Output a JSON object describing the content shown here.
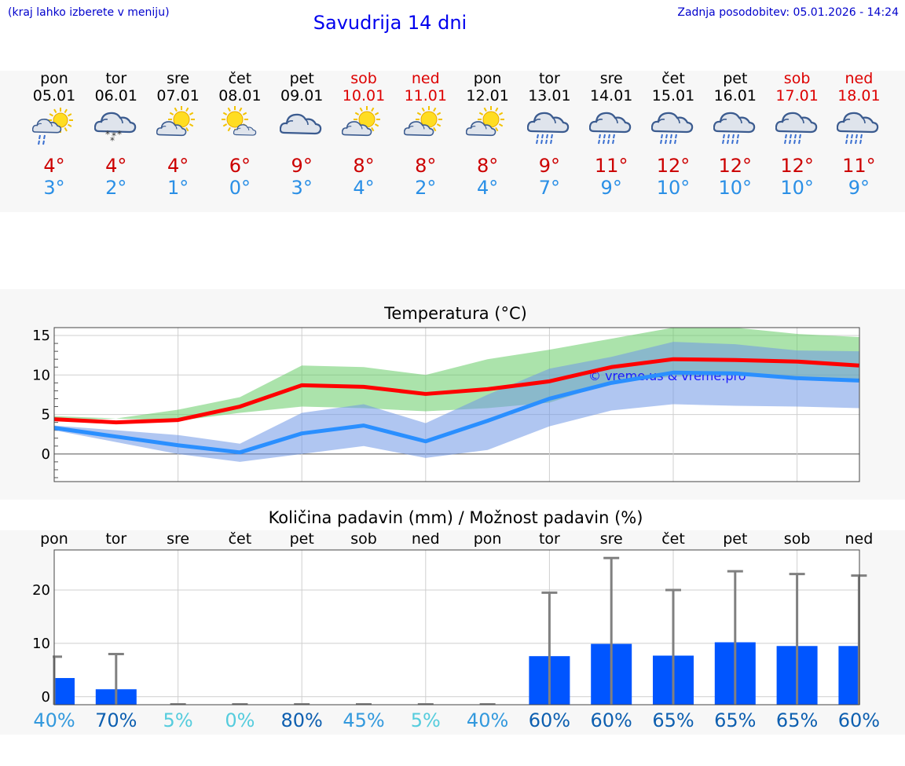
{
  "header": {
    "left_note": "(kraj lahko izberete v meniju)",
    "title": "Savudrija 14 dni",
    "updated": "Zadnja posodobitev: 05.01.2026 - 14:24"
  },
  "days": [
    {
      "name": "pon",
      "date": "05.01",
      "weekend": false,
      "icon": "sun-cloud-rain-icon",
      "tmax": "4°",
      "tmin": "3°"
    },
    {
      "name": "tor",
      "date": "06.01",
      "weekend": false,
      "icon": "cloud-snow-icon",
      "tmax": "4°",
      "tmin": "2°"
    },
    {
      "name": "sre",
      "date": "07.01",
      "weekend": false,
      "icon": "sun-cloud-icon",
      "tmax": "4°",
      "tmin": "1°"
    },
    {
      "name": "čet",
      "date": "08.01",
      "weekend": false,
      "icon": "sun-small-cloud-icon",
      "tmax": "6°",
      "tmin": "0°"
    },
    {
      "name": "pet",
      "date": "09.01",
      "weekend": false,
      "icon": "cloud-icon",
      "tmax": "9°",
      "tmin": "3°"
    },
    {
      "name": "sob",
      "date": "10.01",
      "weekend": true,
      "icon": "sun-cloud-icon",
      "tmax": "8°",
      "tmin": "4°"
    },
    {
      "name": "ned",
      "date": "11.01",
      "weekend": true,
      "icon": "sun-cloud-icon",
      "tmax": "8°",
      "tmin": "2°"
    },
    {
      "name": "pon",
      "date": "12.01",
      "weekend": false,
      "icon": "sun-cloud-icon",
      "tmax": "8°",
      "tmin": "4°"
    },
    {
      "name": "tor",
      "date": "13.01",
      "weekend": false,
      "icon": "cloud-rain-icon",
      "tmax": "9°",
      "tmin": "7°"
    },
    {
      "name": "sre",
      "date": "14.01",
      "weekend": false,
      "icon": "cloud-rain-icon",
      "tmax": "11°",
      "tmin": "9°"
    },
    {
      "name": "čet",
      "date": "15.01",
      "weekend": false,
      "icon": "cloud-rain-icon",
      "tmax": "12°",
      "tmin": "10°"
    },
    {
      "name": "pet",
      "date": "16.01",
      "weekend": false,
      "icon": "cloud-rain-icon",
      "tmax": "12°",
      "tmin": "10°"
    },
    {
      "name": "sob",
      "date": "17.01",
      "weekend": true,
      "icon": "cloud-rain-icon",
      "tmax": "12°",
      "tmin": "10°"
    },
    {
      "name": "ned",
      "date": "18.01",
      "weekend": true,
      "icon": "cloud-rain-icon",
      "tmax": "11°",
      "tmin": "9°"
    }
  ],
  "chart_data": [
    {
      "type": "line",
      "title": "Temperatura (°C)",
      "ylim": [
        -3.5,
        16
      ],
      "yticks": [
        0,
        5,
        10,
        15
      ],
      "x": [
        0,
        1,
        2,
        3,
        4,
        5,
        6,
        7,
        8,
        9,
        10,
        11,
        12,
        13
      ],
      "series": [
        {
          "name": "max",
          "color": "#ff0000",
          "values": [
            4.4,
            4.0,
            4.3,
            6.0,
            8.7,
            8.5,
            7.6,
            8.2,
            9.2,
            11.0,
            12.0,
            11.9,
            11.7,
            11.2
          ]
        },
        {
          "name": "min",
          "color": "#2a8fff",
          "values": [
            3.3,
            2.2,
            1.1,
            0.2,
            2.6,
            3.6,
            1.6,
            4.2,
            7.0,
            9.0,
            10.3,
            10.2,
            9.6,
            9.3
          ]
        }
      ],
      "bands": [
        {
          "name": "max-range",
          "color": "#66cc66",
          "low": [
            4.2,
            4.5,
            4.2,
            5.2,
            6.0,
            5.8,
            5.4,
            5.8,
            6.5,
            9.0,
            9.8,
            9.9,
            9.6,
            9.3
          ],
          "high": [
            4.8,
            4.5,
            5.6,
            7.2,
            11.2,
            11.0,
            10.0,
            12.0,
            13.2,
            14.6,
            16.0,
            16.0,
            15.2,
            14.8
          ]
        },
        {
          "name": "min-range",
          "color": "#6f97e6",
          "low": [
            3.0,
            1.5,
            0.0,
            -1.0,
            0.0,
            1.0,
            -0.5,
            0.5,
            3.5,
            5.5,
            6.3,
            6.1,
            6.0,
            5.8
          ],
          "high": [
            3.6,
            3.0,
            2.4,
            1.3,
            5.2,
            6.3,
            3.9,
            7.5,
            10.8,
            12.3,
            14.2,
            13.9,
            13.1,
            13.0
          ]
        }
      ],
      "watermark": "© vreme.us & vreme.pro"
    },
    {
      "type": "bar",
      "title": "Količina padavin (mm) / Možnost padavin (%)",
      "categories": [
        "pon",
        "tor",
        "sre",
        "čet",
        "pet",
        "sob",
        "ned",
        "pon",
        "tor",
        "sre",
        "čet",
        "pet",
        "sob",
        "ned"
      ],
      "ylim": [
        -1.5,
        27.5
      ],
      "yticks": [
        0,
        10,
        20
      ],
      "values": [
        3.5,
        1.4,
        0,
        0,
        0,
        0,
        0,
        0,
        7.6,
        9.9,
        7.7,
        10.2,
        9.5,
        9.5
      ],
      "error_high": [
        7.5,
        8.0,
        0,
        0,
        0,
        0,
        0,
        0,
        19.5,
        26.0,
        20.0,
        23.5,
        23.0,
        22.7
      ],
      "bar_color": "#0055ff",
      "probabilities": [
        {
          "label": "40%",
          "color": "#3399dd"
        },
        {
          "label": "70%",
          "color": "#0d5fb0"
        },
        {
          "label": "5%",
          "color": "#55ccdd"
        },
        {
          "label": "0%",
          "color": "#55ccdd"
        },
        {
          "label": "80%",
          "color": "#0d5fb0"
        },
        {
          "label": "45%",
          "color": "#3399dd"
        },
        {
          "label": "5%",
          "color": "#55ccdd"
        },
        {
          "label": "40%",
          "color": "#3399dd"
        },
        {
          "label": "60%",
          "color": "#0d5fb0"
        },
        {
          "label": "60%",
          "color": "#0d5fb0"
        },
        {
          "label": "65%",
          "color": "#0d5fb0"
        },
        {
          "label": "65%",
          "color": "#0d5fb0"
        },
        {
          "label": "65%",
          "color": "#0d5fb0"
        },
        {
          "label": "60%",
          "color": "#0d5fb0"
        }
      ]
    }
  ]
}
